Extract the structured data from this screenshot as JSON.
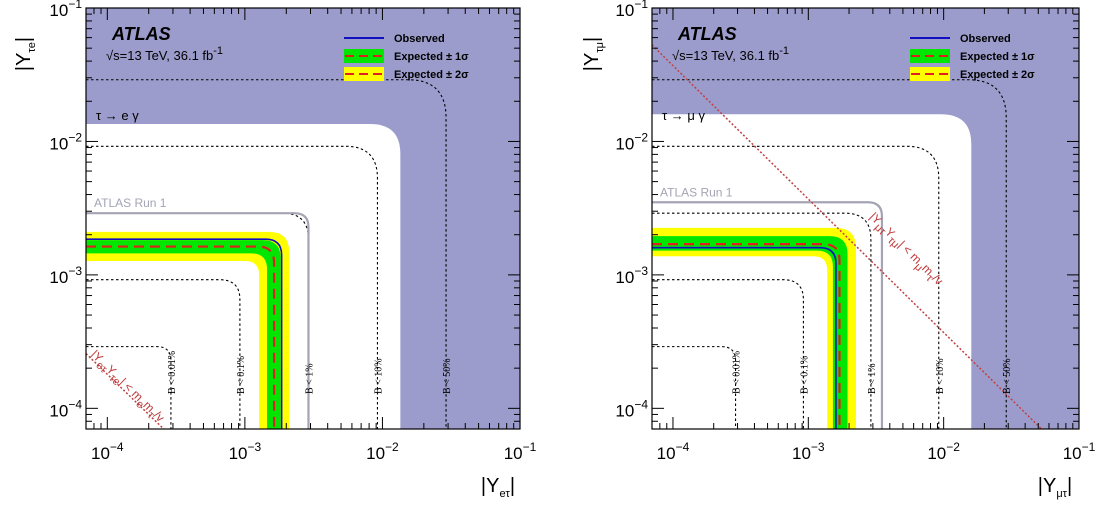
{
  "colors": {
    "excluded": "#9c9ccc",
    "band2": "#ffff00",
    "band1": "#00e600",
    "expected": "#e02020",
    "observed": "#1010c0",
    "run1": "#a4a4b4",
    "contour": "#000000",
    "naturalness": "#c04040"
  },
  "chart_data": [
    {
      "type": "line",
      "panel": "left",
      "process": "τ → e γ",
      "xlabel": {
        "main": "|Y",
        "sub": "eτ",
        "close": "|"
      },
      "ylabel": {
        "main": "|Y",
        "sub": "τe",
        "close": "|"
      },
      "xlim": [
        7e-05,
        0.1
      ],
      "ylim": [
        7e-05,
        0.1
      ],
      "scale": "log",
      "ticks": [
        {
          "value": 0.0001,
          "base": "10",
          "exp": "−4"
        },
        {
          "value": 0.001,
          "base": "10",
          "exp": "−3"
        },
        {
          "value": 0.01,
          "base": "10",
          "exp": "−2"
        },
        {
          "value": 0.1,
          "base": "10",
          "exp": "−1"
        }
      ],
      "atlas_label": "ATLAS",
      "energy_label": {
        "pre": "√s=13 TeV, 36.1 fb",
        "sup": "-1"
      },
      "legend": {
        "placement": "top-right",
        "entries": [
          {
            "key": "observed",
            "label": "Observed"
          },
          {
            "key": "band1",
            "label": "Expected ± 1σ"
          },
          {
            "key": "band2",
            "label": "Expected ± 2σ"
          }
        ]
      },
      "limits": {
        "observed": 0.00185,
        "expected": 0.00163,
        "band1": [
          0.00145,
          0.00182
        ],
        "band2": [
          0.00127,
          0.0021
        ],
        "excluded_from": 0.0135
      },
      "run1": {
        "label": "ATLAS Run 1",
        "value": 0.0029
      },
      "branching_contours": [
        {
          "label": "B < 0.01%",
          "value": 0.00029
        },
        {
          "label": "B < 0.1%",
          "value": 0.00092
        },
        {
          "label": "B < 1%",
          "value": 0.0029
        },
        {
          "label": "B < 10%",
          "value": 0.0092
        },
        {
          "label": "B < 50%",
          "value": 0.029
        }
      ],
      "naturalness": {
        "product": 1.8e-08,
        "label": {
          "p1": "|Y",
          "s1": "eτ",
          "p2": "Y",
          "s2": "τe",
          "p3": "| < m",
          "s3": "e",
          "p4": "m",
          "s4": "τ",
          "p5": "/v"
        }
      }
    },
    {
      "type": "line",
      "panel": "right",
      "process": "τ → μ γ",
      "xlabel": {
        "main": "|Y",
        "sub": "μτ",
        "close": "|"
      },
      "ylabel": {
        "main": "|Y",
        "sub": "τμ",
        "close": "|"
      },
      "xlim": [
        7e-05,
        0.1
      ],
      "ylim": [
        7e-05,
        0.1
      ],
      "scale": "log",
      "ticks": [
        {
          "value": 0.0001,
          "base": "10",
          "exp": "−4"
        },
        {
          "value": 0.001,
          "base": "10",
          "exp": "−3"
        },
        {
          "value": 0.01,
          "base": "10",
          "exp": "−2"
        },
        {
          "value": 0.1,
          "base": "10",
          "exp": "−1"
        }
      ],
      "atlas_label": "ATLAS",
      "energy_label": {
        "pre": "√s=13 TeV, 36.1 fb",
        "sup": "-1"
      },
      "legend": {
        "placement": "top-right",
        "entries": [
          {
            "key": "observed",
            "label": "Observed"
          },
          {
            "key": "band1",
            "label": "Expected ± 1σ"
          },
          {
            "key": "band2",
            "label": "Expected ± 2σ"
          }
        ]
      },
      "limits": {
        "observed": 0.0016,
        "expected": 0.0017,
        "band1": [
          0.00152,
          0.00195
        ],
        "band2": [
          0.00138,
          0.00225
        ],
        "excluded_from": 0.016
      },
      "run1": {
        "label": "ATLAS Run 1",
        "value": 0.0035
      },
      "branching_contours": [
        {
          "label": "B < 0.01%",
          "value": 0.00029
        },
        {
          "label": "B < 0.1%",
          "value": 0.00092
        },
        {
          "label": "B < 1%",
          "value": 0.0029
        },
        {
          "label": "B < 10%",
          "value": 0.0092
        },
        {
          "label": "B < 50%",
          "value": 0.029
        }
      ],
      "naturalness": {
        "product": 3.7e-06,
        "label": {
          "p1": "|Y",
          "s1": "μτ",
          "p2": "Y",
          "s2": "τμ",
          "p3": "| < m",
          "s3": "μ",
          "p4": "m",
          "s4": "τ",
          "p5": "/v"
        }
      }
    }
  ]
}
